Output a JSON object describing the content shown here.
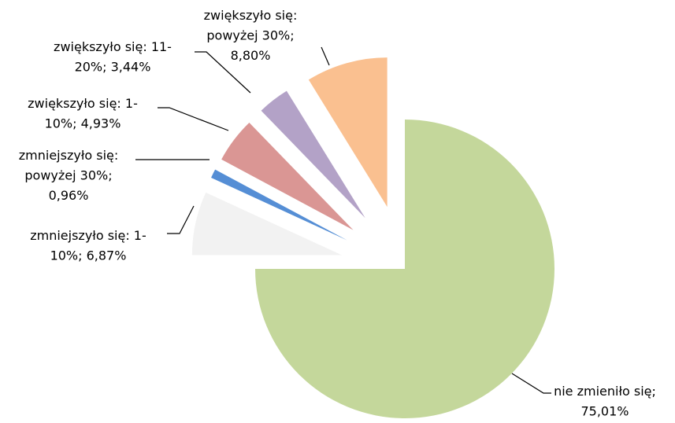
{
  "chart_data": {
    "type": "pie",
    "categories": [
      "nie zmieniło się",
      "zmniejszyło się: 1-10%",
      "zmniejszyło się: powyżej 30%",
      "zwiększyło się: 1-10%",
      "zwiększyło się: 11-20%",
      "zwiększyło się: powyżej 30%"
    ],
    "values": [
      75.01,
      6.87,
      0.96,
      4.93,
      3.44,
      8.8
    ],
    "value_labels": [
      "nie zmieniło się; 75,01%",
      "zmniejszyło się: 1-10%; 6,87%",
      "zmniejszyło się: powyżej 30%; 0,96%",
      "zwiększyło się: 1-10%; 4,93%",
      "zwiększyło się: 11-20%; 3,44%",
      "zwiększyło się: powyżej 30%; 8,80%"
    ],
    "colors": [
      "#c4d79b",
      "#f2f2f2",
      "#558ed5",
      "#da9694",
      "#b3a2c7",
      "#fac090"
    ]
  }
}
